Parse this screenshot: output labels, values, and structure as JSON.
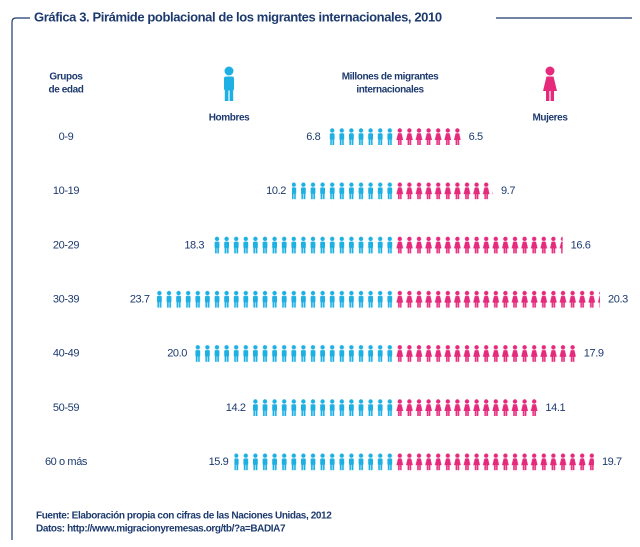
{
  "chart_data": {
    "type": "pictogram-pyramid",
    "title": "Gráfica 3. Pirámide poblacional de los migrantes internacionales, 2010",
    "group_header": [
      "Grupos",
      "de edad"
    ],
    "unit_label": [
      "Millones de migrantes",
      "internacionales"
    ],
    "categories": [
      "0-9",
      "10-19",
      "20-29",
      "30-39",
      "40-49",
      "50-59",
      "60 o más"
    ],
    "series": [
      {
        "name": "Hombres",
        "color": "#1fb0e3",
        "values": [
          6.8,
          10.2,
          18.3,
          23.7,
          20.0,
          14.2,
          15.9
        ],
        "value_labels": [
          "6.8",
          "10.2",
          "18.3",
          "23.7",
          "20.0",
          "14.2",
          "15.9"
        ]
      },
      {
        "name": "Mujeres",
        "color": "#e52a7c",
        "values": [
          6.5,
          9.7,
          16.6,
          20.3,
          17.9,
          14.1,
          19.7
        ],
        "value_labels": [
          "6.5",
          "9.7",
          "16.6",
          "20.3",
          "17.9",
          "14.1",
          "19.7"
        ]
      }
    ],
    "footer": [
      "Fuente: Elaboración propia con cifras de las Naciones Unidas, 2012",
      "Datos: http://www.migracionyremesas.org/tb/?a=BADIA7"
    ]
  }
}
